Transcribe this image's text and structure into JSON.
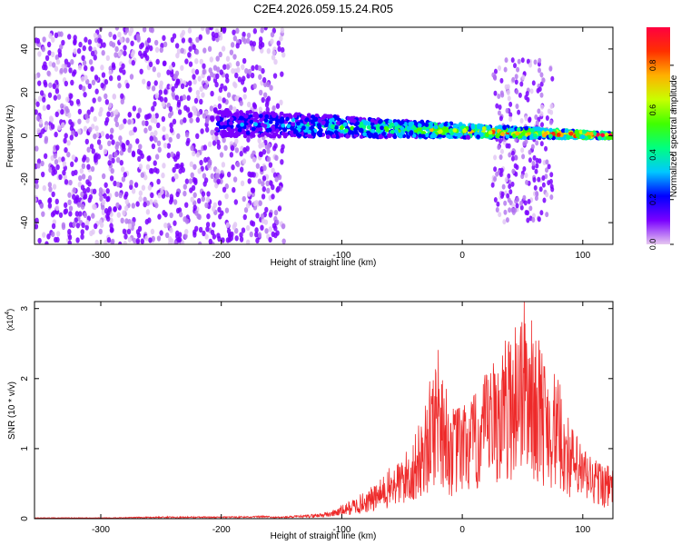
{
  "title": "C2E4.2026.059.15.24.R05",
  "colorbar": {
    "label": "Normalized spectral amplitude",
    "ticks": [
      "0.0",
      "0.2",
      "0.4",
      "0.6",
      "0.8"
    ],
    "tick_values": [
      0.0,
      0.2,
      0.4,
      0.6,
      0.8
    ],
    "range": [
      0,
      0.97
    ],
    "colors": [
      "#e6c8f0",
      "#7a00ff",
      "#0000ff",
      "#00c8ff",
      "#00ff80",
      "#40ff00",
      "#c8ff00",
      "#ffb000",
      "#ff3000",
      "#ff0040"
    ]
  },
  "chart_data": [
    {
      "type": "heatmap",
      "title": "C2E4.2026.059.15.24.R05",
      "xlabel": "Height of straight line (km)",
      "ylabel": "Frequency (Hz)",
      "xlim": [
        -355,
        125
      ],
      "ylim": [
        -50,
        50
      ],
      "xticks": [
        -300,
        -200,
        -100,
        0,
        100
      ],
      "yticks": [
        -40,
        -20,
        0,
        20,
        40
      ],
      "xtick_labels": [
        "-300",
        "-200",
        "-100",
        "0",
        "100"
      ],
      "ytick_labels": [
        "-40",
        "-20",
        "0",
        "20",
        "40"
      ],
      "regions": [
        {
          "name": "broadband noise",
          "x": [
            -355,
            -148
          ],
          "freq": [
            -50,
            50
          ],
          "amplitude": 0.15
        },
        {
          "name": "narrowband signal",
          "x": [
            -205,
            125
          ],
          "freq_center_start": 6,
          "freq_center_end": 0,
          "amplitude_range": [
            0.2,
            0.95
          ]
        },
        {
          "name": "burst",
          "x": [
            25,
            75
          ],
          "freq": [
            -40,
            35
          ],
          "amplitude": 0.12
        }
      ]
    },
    {
      "type": "line",
      "xlabel": "Height of straight line (km)",
      "ylabel": "SNR (10 * v/v)",
      "y_multiplier": "(x10",
      "y_multiplier_exp": "4",
      "y_multiplier_close": ")",
      "xlim": [
        -355,
        125
      ],
      "ylim": [
        0,
        3.1
      ],
      "xticks": [
        -300,
        -200,
        -100,
        0,
        100
      ],
      "yticks": [
        0,
        1,
        2,
        3
      ],
      "xtick_labels": [
        "-300",
        "-200",
        "-100",
        "0",
        "100"
      ],
      "ytick_labels": [
        "0",
        "1",
        "2",
        "3"
      ],
      "series": [
        {
          "name": "SNR",
          "color": "#ee2a2a",
          "x": [
            -355,
            -300,
            -250,
            -200,
            -150,
            -130,
            -110,
            -100,
            -90,
            -80,
            -70,
            -60,
            -50,
            -40,
            -30,
            -20,
            -10,
            0,
            10,
            20,
            30,
            40,
            50,
            60,
            70,
            80,
            90,
            100,
            110,
            125
          ],
          "y": [
            0.01,
            0.01,
            0.02,
            0.02,
            0.03,
            0.05,
            0.1,
            0.18,
            0.28,
            0.38,
            0.5,
            0.7,
            0.85,
            1.1,
            1.6,
            2.5,
            1.5,
            1.6,
            1.7,
            2.0,
            2.3,
            2.6,
            3.1,
            2.6,
            2.2,
            1.9,
            1.3,
            1.0,
            0.85,
            0.7
          ]
        }
      ]
    }
  ]
}
